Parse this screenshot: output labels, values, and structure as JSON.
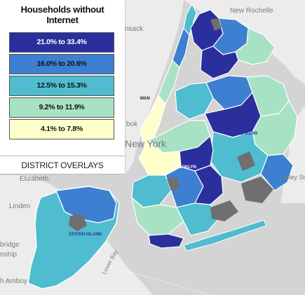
{
  "legend": {
    "title_line1": "Households without",
    "title_line2": "Internet",
    "bins": [
      {
        "label": "21.0% to 33.4%",
        "color": "#2b2f9e",
        "text_color": "#ffffff"
      },
      {
        "label": "16.0% to 20.6%",
        "color": "#3d7fd0",
        "text_color": "#111111"
      },
      {
        "label": "12.5% to 15.3%",
        "color": "#4fbccf",
        "text_color": "#111111"
      },
      {
        "label": "9.2% to 11.9%",
        "color": "#a8e2c4",
        "text_color": "#111111"
      },
      {
        "label": "4.1% to 7.8%",
        "color": "#ffffcc",
        "text_color": "#111111"
      }
    ]
  },
  "overlays_button": "DISTRICT OVERLAYS",
  "map_labels": {
    "new_rochelle": "New Rochelle",
    "elizabeth": "Elizabeth",
    "linden": "Linden",
    "bridge": "bridge",
    "nship": "nship",
    "amboy": "h Amboy",
    "nsack": "nsack",
    "hoboken": "bok",
    "new_york": "New York",
    "valley_stream": "Valley Str",
    "lower_bay": "Lower Bay",
    "queens": "QUEENS",
    "brooklyn": "BROOKLYN",
    "staten_island": "STATEN ISLAND",
    "manhattan": "MAN"
  },
  "map_colors": {
    "water": "#d4d4d4",
    "land": "#ececec",
    "park": "#6f6f6f",
    "boundary": "#ffffff"
  }
}
